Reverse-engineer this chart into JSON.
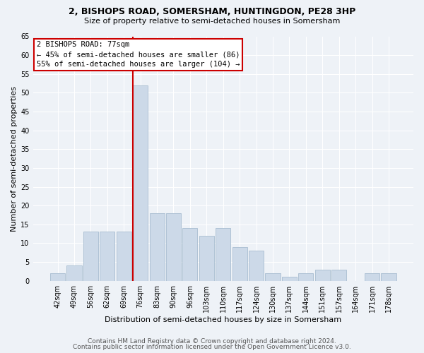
{
  "title1": "2, BISHOPS ROAD, SOMERSHAM, HUNTINGDON, PE28 3HP",
  "title2": "Size of property relative to semi-detached houses in Somersham",
  "xlabel": "Distribution of semi-detached houses by size in Somersham",
  "ylabel": "Number of semi-detached properties",
  "categories": [
    "42sqm",
    "49sqm",
    "56sqm",
    "62sqm",
    "69sqm",
    "76sqm",
    "83sqm",
    "90sqm",
    "96sqm",
    "103sqm",
    "110sqm",
    "117sqm",
    "124sqm",
    "130sqm",
    "137sqm",
    "144sqm",
    "151sqm",
    "157sqm",
    "164sqm",
    "171sqm",
    "178sqm"
  ],
  "values": [
    2,
    4,
    13,
    13,
    13,
    52,
    18,
    18,
    14,
    12,
    14,
    9,
    8,
    2,
    1,
    2,
    3,
    3,
    0,
    2,
    2
  ],
  "bar_color": "#ccd9e8",
  "bar_edgecolor": "#a8bdd0",
  "highlight_index": 5,
  "property_label": "2 BISHOPS ROAD: 77sqm",
  "annotation_line1": "← 45% of semi-detached houses are smaller (86)",
  "annotation_line2": "55% of semi-detached houses are larger (104) →",
  "annotation_box_facecolor": "#ffffff",
  "annotation_box_edgecolor": "#cc0000",
  "vline_color": "#cc0000",
  "ylim": [
    0,
    65
  ],
  "yticks": [
    0,
    5,
    10,
    15,
    20,
    25,
    30,
    35,
    40,
    45,
    50,
    55,
    60,
    65
  ],
  "footer1": "Contains HM Land Registry data © Crown copyright and database right 2024.",
  "footer2": "Contains public sector information licensed under the Open Government Licence v3.0.",
  "bg_color": "#eef2f7",
  "grid_color": "#ffffff",
  "title1_fontsize": 9,
  "title2_fontsize": 8,
  "ylabel_fontsize": 8,
  "xlabel_fontsize": 8,
  "tick_fontsize": 7,
  "annotation_fontsize": 7.5,
  "footer_fontsize": 6.5
}
